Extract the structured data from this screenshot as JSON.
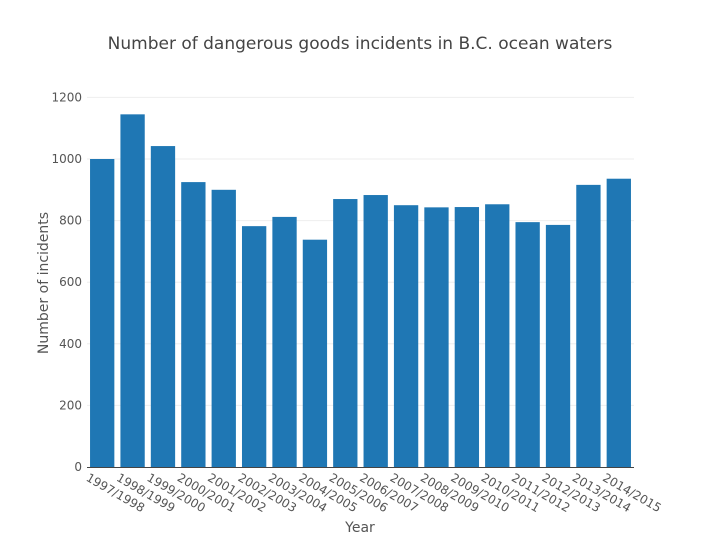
{
  "chart_data": {
    "type": "bar",
    "title": "Number of dangerous goods incidents in B.C. ocean waters",
    "xlabel": "Year",
    "ylabel": "Number of incidents",
    "ylim": [
      0,
      1250
    ],
    "yticks": [
      0,
      200,
      400,
      600,
      800,
      1000,
      1200
    ],
    "grid": true,
    "bar_color": "#1f77b4",
    "categories": [
      "1997/1998",
      "1998/1999",
      "1999/2000",
      "2000/2001",
      "2001/2002",
      "2002/2003",
      "2003/2004",
      "2004/2005",
      "2005/2006",
      "2006/2007",
      "2007/2008",
      "2008/2009",
      "2009/2010",
      "2010/2011",
      "2011/2012",
      "2012/2013",
      "2013/2014",
      "2014/2015"
    ],
    "values": [
      1000,
      1145,
      1042,
      925,
      900,
      782,
      812,
      738,
      870,
      883,
      850,
      843,
      844,
      853,
      795,
      786,
      916,
      936
    ]
  }
}
